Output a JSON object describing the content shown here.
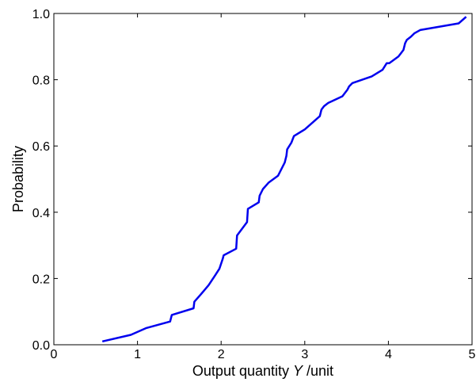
{
  "chart_data": {
    "type": "line",
    "title": "",
    "xlabel": "Output quantity Y /unit",
    "xlabel_parts": {
      "before": "Output quantity ",
      "italic": "Y",
      "after": " /unit"
    },
    "ylabel": "Probability",
    "xlim": [
      0,
      5
    ],
    "ylim": [
      0,
      1
    ],
    "x_ticks": [
      0,
      1,
      2,
      3,
      4,
      5
    ],
    "x_tick_labels": [
      "0",
      "1",
      "2",
      "3",
      "4",
      "5"
    ],
    "y_ticks": [
      0,
      0.2,
      0.4,
      0.6,
      0.8,
      1.0
    ],
    "y_tick_labels": [
      "0.0",
      "0.2",
      "0.4",
      "0.6",
      "0.8",
      "1.0"
    ],
    "grid": false,
    "series": [
      {
        "color": "#0000ee",
        "x": [
          0.58,
          0.92,
          1.1,
          1.39,
          1.41,
          1.67,
          1.68,
          1.75,
          1.85,
          1.93,
          1.98,
          2.02,
          2.03,
          2.18,
          2.19,
          2.31,
          2.32,
          2.45,
          2.46,
          2.5,
          2.57,
          2.68,
          2.76,
          2.78,
          2.79,
          2.84,
          2.87,
          3.0,
          3.09,
          3.18,
          3.2,
          3.23,
          3.28,
          3.45,
          3.51,
          3.53,
          3.57,
          3.8,
          3.93,
          3.98,
          4.01,
          4.12,
          4.18,
          4.2,
          4.22,
          4.27,
          4.31,
          4.38,
          4.84,
          4.93
        ],
        "y": [
          0.01,
          0.03,
          0.05,
          0.07,
          0.09,
          0.11,
          0.13,
          0.15,
          0.18,
          0.21,
          0.23,
          0.26,
          0.27,
          0.29,
          0.33,
          0.37,
          0.41,
          0.43,
          0.45,
          0.47,
          0.49,
          0.51,
          0.55,
          0.57,
          0.59,
          0.61,
          0.63,
          0.65,
          0.67,
          0.69,
          0.71,
          0.72,
          0.73,
          0.75,
          0.77,
          0.78,
          0.79,
          0.81,
          0.83,
          0.85,
          0.85,
          0.87,
          0.89,
          0.91,
          0.92,
          0.93,
          0.94,
          0.95,
          0.97,
          0.99
        ]
      }
    ]
  }
}
